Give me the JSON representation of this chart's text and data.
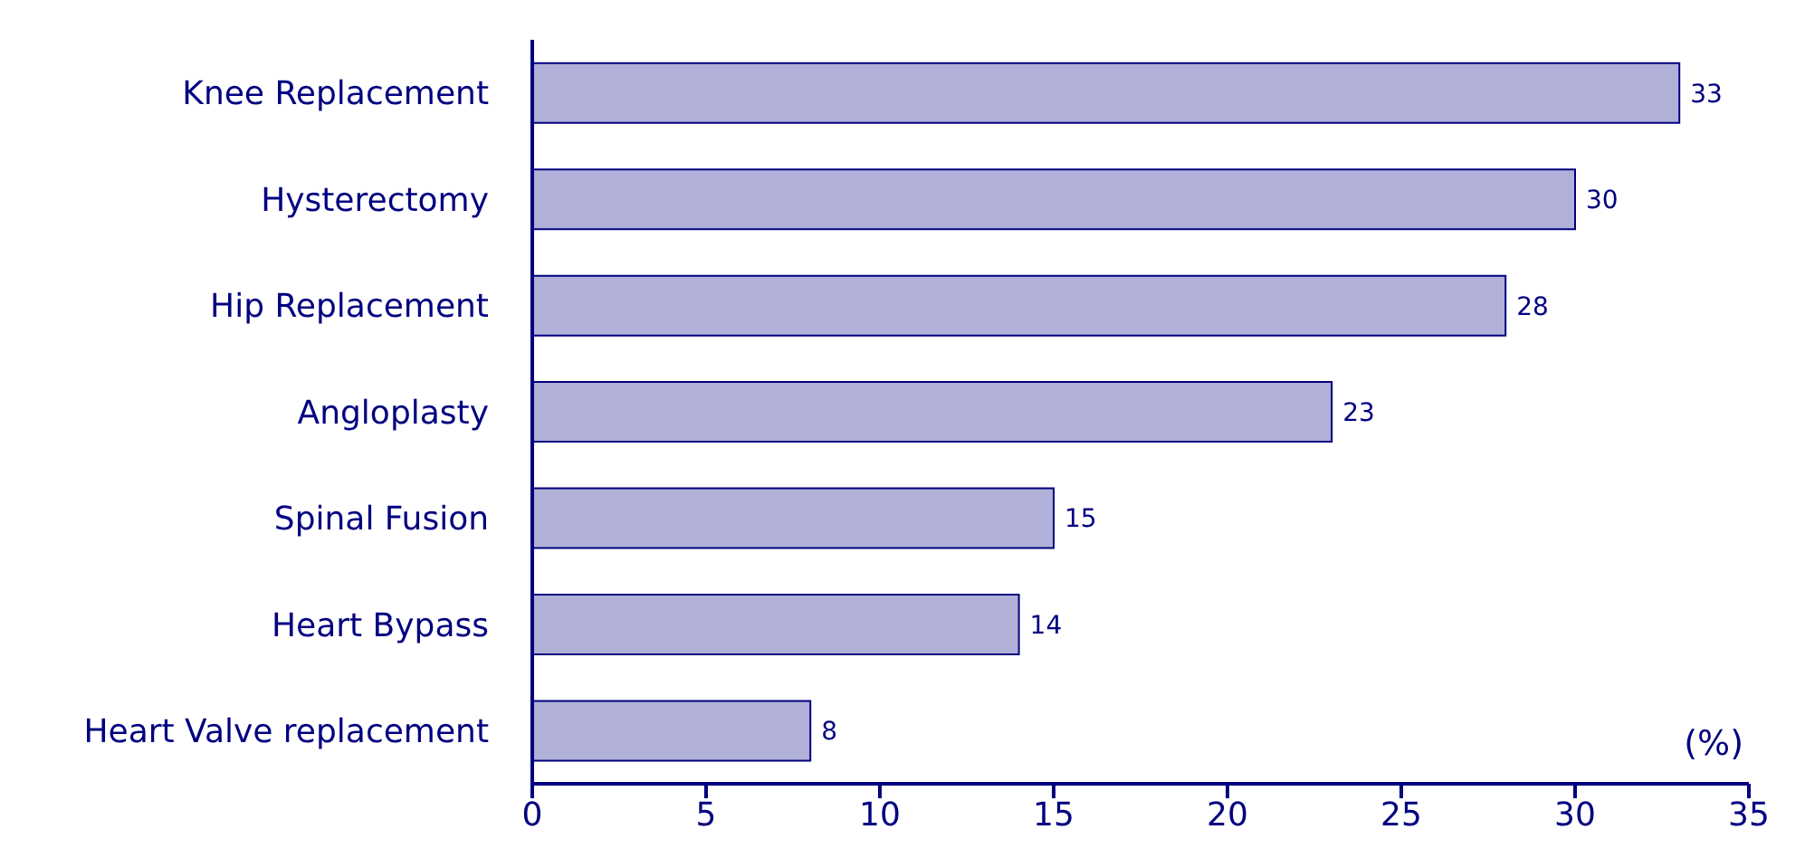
{
  "chart_data": {
    "type": "bar",
    "orientation": "horizontal",
    "xlabel": "(%)",
    "categories": [
      "Knee Replacement",
      "Hysterectomy",
      "Hip Replacement",
      "Angloplasty",
      "Spinal Fusion",
      "Heart Bypass",
      "Heart Valve replacement"
    ],
    "values": [
      33,
      30,
      28,
      23,
      15,
      14,
      8
    ],
    "color": "#b0b0d8",
    "xlim": [
      0,
      35
    ],
    "xticks": [
      0,
      5,
      10,
      15,
      20,
      25,
      30,
      35
    ],
    "data_labels": true
  }
}
